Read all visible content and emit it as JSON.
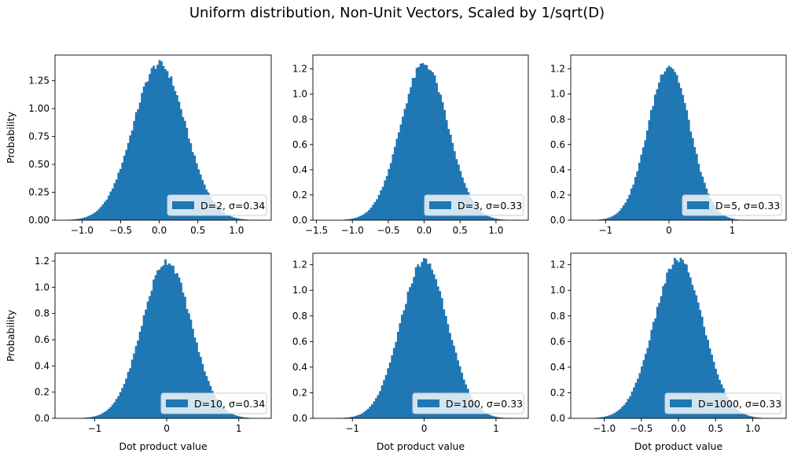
{
  "figure": {
    "title": "Uniform distribution, Non-Unit Vectors, Scaled by 1/sqrt(D)",
    "bar_color": "#1f77b4"
  },
  "chart_data": [
    {
      "type": "bar",
      "title": "",
      "xlabel": "",
      "ylabel": "Probability",
      "legend": {
        "label": "D=2, σ=0.34",
        "placement": "lower right"
      },
      "sigma": 0.34,
      "xlim": [
        -1.35,
        1.45
      ],
      "ylim": [
        0,
        1.48
      ],
      "xticks": [
        -1.0,
        -0.5,
        0.0,
        0.5,
        1.0
      ],
      "xtick_labels": [
        "−1.0",
        "−0.5",
        "0.0",
        "0.5",
        "1.0"
      ],
      "yticks": [
        0,
        0.25,
        0.5,
        0.75,
        1.0,
        1.25
      ],
      "ytick_labels": [
        "0.00",
        "0.25",
        "0.50",
        "0.75",
        "1.00",
        "1.25"
      ],
      "x_range": [
        -1.25,
        1.28
      ],
      "peak": 1.4
    },
    {
      "type": "bar",
      "title": "",
      "xlabel": "",
      "ylabel": "",
      "legend": {
        "label": "D=3, σ=0.33",
        "placement": "lower right"
      },
      "sigma": 0.33,
      "xlim": [
        -1.55,
        1.45
      ],
      "ylim": [
        0,
        1.31
      ],
      "xticks": [
        -1.5,
        -1.0,
        -0.5,
        0.0,
        0.5,
        1.0
      ],
      "xtick_labels": [
        "−1.5",
        "−1.0",
        "−0.5",
        "0.0",
        "0.5",
        "1.0"
      ],
      "yticks": [
        0,
        0.2,
        0.4,
        0.6,
        0.8,
        1.0,
        1.2
      ],
      "ytick_labels": [
        "0.0",
        "0.2",
        "0.4",
        "0.6",
        "0.8",
        "1.0",
        "1.2"
      ],
      "x_range": [
        -1.42,
        1.35
      ],
      "peak": 1.24
    },
    {
      "type": "bar",
      "title": "",
      "xlabel": "",
      "ylabel": "",
      "legend": {
        "label": "D=5, σ=0.33",
        "placement": "lower right"
      },
      "sigma": 0.33,
      "xlim": [
        -1.55,
        1.85
      ],
      "ylim": [
        0,
        1.31
      ],
      "xticks": [
        -1,
        0,
        1
      ],
      "xtick_labels": [
        "−1",
        "0",
        "1"
      ],
      "yticks": [
        0,
        0.2,
        0.4,
        0.6,
        0.8,
        1.0,
        1.2
      ],
      "ytick_labels": [
        "0.0",
        "0.2",
        "0.4",
        "0.6",
        "0.8",
        "1.0",
        "1.2"
      ],
      "x_range": [
        -1.42,
        1.7
      ],
      "peak": 1.23
    },
    {
      "type": "bar",
      "title": "",
      "xlabel": "Dot product value",
      "ylabel": "Probability",
      "legend": {
        "label": "D=10, σ=0.34",
        "placement": "lower right"
      },
      "sigma": 0.34,
      "xlim": [
        -1.55,
        1.45
      ],
      "ylim": [
        0,
        1.26
      ],
      "xticks": [
        -1,
        0,
        1
      ],
      "xtick_labels": [
        "−1",
        "0",
        "1"
      ],
      "yticks": [
        0,
        0.2,
        0.4,
        0.6,
        0.8,
        1.0,
        1.2
      ],
      "ytick_labels": [
        "0.0",
        "0.2",
        "0.4",
        "0.6",
        "0.8",
        "1.0",
        "1.2"
      ],
      "x_range": [
        -1.42,
        1.3
      ],
      "peak": 1.2
    },
    {
      "type": "bar",
      "title": "",
      "xlabel": "Dot product value",
      "ylabel": "",
      "legend": {
        "label": "D=100, σ=0.33",
        "placement": "lower right"
      },
      "sigma": 0.33,
      "xlim": [
        -1.55,
        1.45
      ],
      "ylim": [
        0,
        1.29
      ],
      "xticks": [
        -1,
        0,
        1
      ],
      "xtick_labels": [
        "−1",
        "0",
        "1"
      ],
      "yticks": [
        0,
        0.2,
        0.4,
        0.6,
        0.8,
        1.0,
        1.2
      ],
      "ytick_labels": [
        "0.0",
        "0.2",
        "0.4",
        "0.6",
        "0.8",
        "1.0",
        "1.2"
      ],
      "x_range": [
        -1.38,
        1.4
      ],
      "peak": 1.23
    },
    {
      "type": "bar",
      "title": "",
      "xlabel": "Dot product value",
      "ylabel": "",
      "legend": {
        "label": "D=1000, σ=0.33",
        "placement": "lower right"
      },
      "sigma": 0.33,
      "xlim": [
        -1.45,
        1.45
      ],
      "ylim": [
        0,
        1.29
      ],
      "xticks": [
        -1.0,
        -0.5,
        0.0,
        0.5,
        1.0
      ],
      "xtick_labels": [
        "−1.0",
        "−0.5",
        "0.0",
        "0.5",
        "1.0"
      ],
      "yticks": [
        0,
        0.2,
        0.4,
        0.6,
        0.8,
        1.0,
        1.2
      ],
      "ytick_labels": [
        "0.0",
        "0.2",
        "0.4",
        "0.6",
        "0.8",
        "1.0",
        "1.2"
      ],
      "x_range": [
        -1.32,
        1.3
      ],
      "peak": 1.24
    }
  ]
}
